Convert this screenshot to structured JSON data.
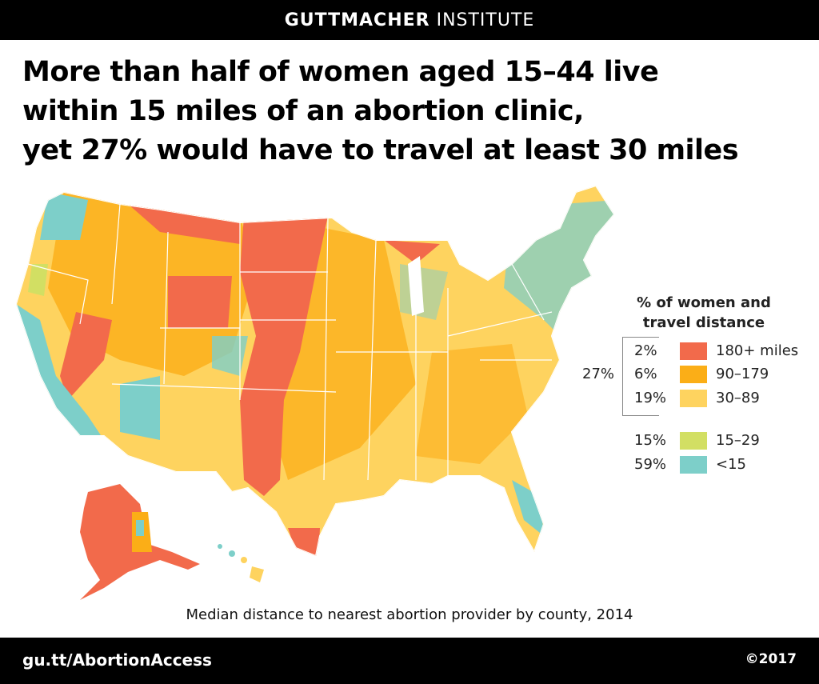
{
  "header": {
    "brand_bold": "GUTTMACHER",
    "brand_light": "INSTITUTE"
  },
  "headline": [
    "More than half of women aged 15–44 live",
    "within 15 miles of an abortion clinic,",
    "yet 27% would have to travel at least 30 miles"
  ],
  "legend": {
    "title_line1": "% of women and",
    "title_line2": "travel distance",
    "bracket_total": "27%",
    "items": [
      {
        "pct": "2%",
        "label": "180+ miles",
        "color": "#f26a4b"
      },
      {
        "pct": "6%",
        "label": "90–179",
        "color": "#fbae17"
      },
      {
        "pct": "19%",
        "label": "30–89",
        "color": "#fed35f"
      },
      {
        "pct": "15%",
        "label": "15–29",
        "color": "#d2df63"
      },
      {
        "pct": "59%",
        "label": "<15",
        "color": "#7dcfc9"
      }
    ]
  },
  "caption": "Median distance to nearest abortion provider by county, 2014",
  "footer": {
    "url": "gu.tt/AbortionAccess",
    "copyright": "©2017"
  }
}
